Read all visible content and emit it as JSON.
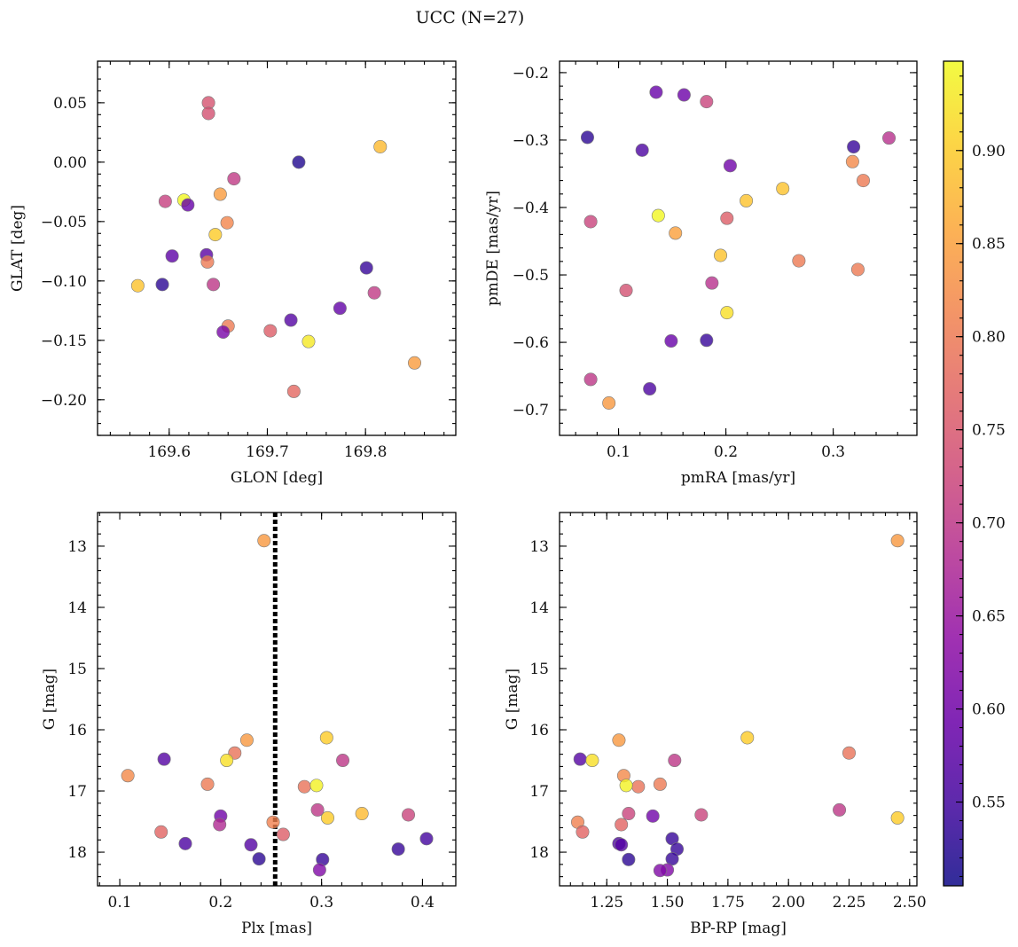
{
  "title": "UCC (N=27)",
  "colorbar": {
    "range": [
      0.505,
      0.948
    ],
    "ticks": [
      0.55,
      0.6,
      0.65,
      0.7,
      0.75,
      0.8,
      0.85,
      0.9
    ],
    "tick_labels": [
      "0.55",
      "0.60",
      "0.65",
      "0.70",
      "0.75",
      "0.80",
      "0.85",
      "0.90"
    ],
    "colormap": "plasma",
    "colors": [
      "#0d0887",
      "#41049d",
      "#6a00a8",
      "#8f0da4",
      "#b12a90",
      "#cc4778",
      "#e16462",
      "#f2844b",
      "#fca636",
      "#fcce25",
      "#f0f921"
    ],
    "alpha": 0.8
  },
  "chart_data": [
    {
      "type": "scatter",
      "name": "glon-glat",
      "xlabel": "GLON [deg]",
      "ylabel": "GLAT [deg]",
      "xlim": [
        169.527,
        169.892
      ],
      "ylim": [
        -0.23,
        0.085
      ],
      "invert_y": false,
      "xticks": [
        169.6,
        169.7,
        169.8
      ],
      "xtick_labels": [
        "169.6",
        "169.7",
        "169.8"
      ],
      "yticks": [
        -0.2,
        -0.15,
        -0.1,
        -0.05,
        0.0,
        0.05
      ],
      "ytick_labels": [
        "−0.20",
        "−0.15",
        "−0.10",
        "−0.05",
        "0.00",
        "0.05"
      ],
      "x": [
        169.64,
        169.64,
        169.732,
        169.815,
        169.666,
        169.615,
        169.596,
        169.619,
        169.652,
        169.659,
        169.647,
        169.603,
        169.638,
        169.639,
        169.801,
        169.568,
        169.593,
        169.645,
        169.809,
        169.774,
        169.724,
        169.66,
        169.655,
        169.703,
        169.742,
        169.85,
        169.727
      ],
      "y": [
        0.05,
        0.041,
        0.0,
        0.013,
        -0.014,
        -0.032,
        -0.033,
        -0.036,
        -0.027,
        -0.051,
        -0.061,
        -0.079,
        -0.078,
        -0.084,
        -0.089,
        -0.104,
        -0.103,
        -0.103,
        -0.11,
        -0.123,
        -0.133,
        -0.138,
        -0.143,
        -0.142,
        -0.151,
        -0.169,
        -0.193
      ],
      "c": [
        0.745,
        0.74,
        0.52,
        0.88,
        0.705,
        0.945,
        0.715,
        0.59,
        0.845,
        0.815,
        0.9,
        0.58,
        0.575,
        0.8,
        0.54,
        0.89,
        0.53,
        0.7,
        0.705,
        0.585,
        0.57,
        0.8,
        0.61,
        0.76,
        0.93,
        0.845,
        0.775
      ]
    },
    {
      "type": "scatter",
      "name": "pmra-pmde",
      "xlabel": "pmRA [mas/yr]",
      "ylabel": "pmDE [mas/yr]",
      "xlim": [
        0.045,
        0.378
      ],
      "ylim": [
        -0.738,
        -0.183
      ],
      "invert_y": false,
      "xticks": [
        0.1,
        0.2,
        0.3
      ],
      "xtick_labels": [
        "0.1",
        "0.2",
        "0.3"
      ],
      "yticks": [
        -0.7,
        -0.6,
        -0.5,
        -0.4,
        -0.3,
        -0.2
      ],
      "ytick_labels": [
        "−0.7",
        "−0.6",
        "−0.5",
        "−0.4",
        "−0.3",
        "−0.2"
      ],
      "x": [
        0.135,
        0.161,
        0.182,
        0.071,
        0.352,
        0.122,
        0.319,
        0.204,
        0.318,
        0.328,
        0.219,
        0.253,
        0.137,
        0.201,
        0.074,
        0.153,
        0.268,
        0.195,
        0.323,
        0.187,
        0.107,
        0.201,
        0.149,
        0.182,
        0.074,
        0.129,
        0.091
      ],
      "y": [
        -0.229,
        -0.233,
        -0.243,
        -0.296,
        -0.297,
        -0.315,
        -0.31,
        -0.338,
        -0.332,
        -0.36,
        -0.39,
        -0.372,
        -0.412,
        -0.416,
        -0.421,
        -0.438,
        -0.479,
        -0.471,
        -0.492,
        -0.512,
        -0.523,
        -0.556,
        -0.598,
        -0.597,
        -0.655,
        -0.669,
        -0.69
      ],
      "c": [
        0.59,
        0.595,
        0.72,
        0.53,
        0.69,
        0.56,
        0.54,
        0.6,
        0.82,
        0.8,
        0.89,
        0.89,
        0.945,
        0.76,
        0.72,
        0.85,
        0.8,
        0.89,
        0.8,
        0.69,
        0.74,
        0.92,
        0.59,
        0.54,
        0.7,
        0.56,
        0.84
      ]
    },
    {
      "type": "scatter",
      "name": "plx-g",
      "xlabel": "Plx [mas]",
      "ylabel": "G [mag]",
      "xlim": [
        0.078,
        0.433
      ],
      "ylim": [
        18.55,
        12.45
      ],
      "invert_y": true,
      "vline": 0.254,
      "xticks": [
        0.1,
        0.2,
        0.3,
        0.4
      ],
      "xtick_labels": [
        "0.1",
        "0.2",
        "0.3",
        "0.4"
      ],
      "yticks": [
        13,
        14,
        15,
        16,
        17,
        18
      ],
      "ytick_labels": [
        "13",
        "14",
        "15",
        "16",
        "17",
        "18"
      ],
      "x": [
        0.243,
        0.305,
        0.226,
        0.214,
        0.144,
        0.206,
        0.321,
        0.108,
        0.187,
        0.283,
        0.295,
        0.296,
        0.2,
        0.306,
        0.34,
        0.386,
        0.199,
        0.252,
        0.141,
        0.262,
        0.165,
        0.23,
        0.376,
        0.404,
        0.238,
        0.301,
        0.298
      ],
      "y": [
        12.91,
        16.13,
        16.17,
        16.38,
        16.48,
        16.5,
        16.5,
        16.75,
        16.89,
        16.93,
        16.91,
        17.31,
        17.41,
        17.44,
        17.37,
        17.39,
        17.55,
        17.51,
        17.67,
        17.71,
        17.86,
        17.88,
        17.95,
        17.78,
        18.11,
        18.12,
        18.29
      ],
      "c": [
        0.84,
        0.9,
        0.84,
        0.79,
        0.57,
        0.92,
        0.7,
        0.82,
        0.8,
        0.79,
        0.94,
        0.7,
        0.6,
        0.9,
        0.88,
        0.72,
        0.68,
        0.81,
        0.77,
        0.76,
        0.56,
        0.57,
        0.54,
        0.55,
        0.53,
        0.54,
        0.62
      ]
    },
    {
      "type": "scatter",
      "name": "bprp-g",
      "xlabel": "BP-RP [mag]",
      "ylabel": "G [mag]",
      "xlim": [
        1.055,
        2.53
      ],
      "ylim": [
        18.55,
        12.45
      ],
      "invert_y": true,
      "xticks": [
        1.25,
        1.5,
        1.75,
        2.0,
        2.25,
        2.5
      ],
      "xtick_labels": [
        "1.25",
        "1.50",
        "1.75",
        "2.00",
        "2.25",
        "2.50"
      ],
      "yticks": [
        13,
        14,
        15,
        16,
        17,
        18
      ],
      "ytick_labels": [
        "13",
        "14",
        "15",
        "16",
        "17",
        "18"
      ],
      "x": [
        2.45,
        1.83,
        1.3,
        2.25,
        1.14,
        1.19,
        1.53,
        1.32,
        1.47,
        1.38,
        1.33,
        2.21,
        1.44,
        2.45,
        1.34,
        1.64,
        1.31,
        1.13,
        1.15,
        1.52,
        1.3,
        1.31,
        1.54,
        1.34,
        1.52,
        1.5,
        1.47
      ],
      "y": [
        12.91,
        16.13,
        16.17,
        16.38,
        16.48,
        16.5,
        16.5,
        16.75,
        16.89,
        16.93,
        16.91,
        17.31,
        17.41,
        17.44,
        17.37,
        17.39,
        17.55,
        17.51,
        17.67,
        17.78,
        17.86,
        17.88,
        17.95,
        18.12,
        18.11,
        18.29,
        18.3
      ],
      "c": [
        0.84,
        0.9,
        0.84,
        0.79,
        0.57,
        0.92,
        0.7,
        0.82,
        0.8,
        0.79,
        0.94,
        0.7,
        0.6,
        0.9,
        0.72,
        0.72,
        0.77,
        0.81,
        0.77,
        0.54,
        0.56,
        0.57,
        0.54,
        0.53,
        0.54,
        0.62,
        0.62
      ]
    }
  ]
}
